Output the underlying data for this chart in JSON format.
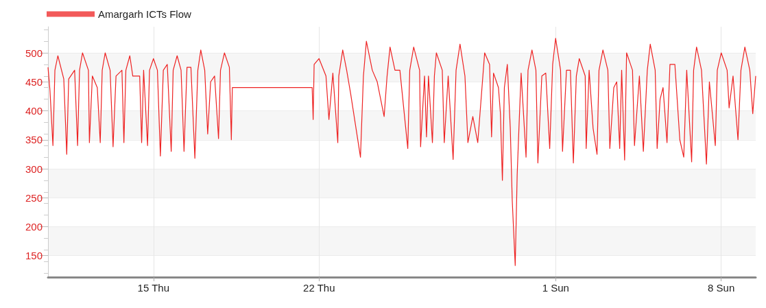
{
  "chart_data": {
    "type": "line",
    "legend": "top left",
    "grid": true,
    "marker": "none",
    "line_style": "solid",
    "xlim": [
      "--10-10T13:00",
      "--11-09T11:00"
    ],
    "xticks": [
      {
        "value": "--10-15",
        "label": "15 Thu"
      },
      {
        "value": "--10-22",
        "label": "22 Thu"
      },
      {
        "value": "--11-01",
        "label": "1 Sun"
      },
      {
        "value": "--11-08",
        "label": "8 Sun"
      }
    ],
    "ylim": [
      113,
      545
    ],
    "yticks": [
      150,
      200,
      250,
      300,
      350,
      400,
      450,
      500
    ],
    "series": [
      {
        "name": "Amargarh ICTs Flow",
        "color": "#ee2222",
        "x": [
          "--10-10T13:00",
          "--10-10T15:00",
          "--10-10T18:00",
          "--10-10T20:00",
          "--10-10T23:00",
          "--10-11T05:00",
          "--10-11T08:00",
          "--10-11T10:00",
          "--10-11T16:00",
          "--10-11T19:00",
          "--10-11T21:00",
          "--10-12T00:00",
          "--10-12T06:00",
          "--10-12T07:00",
          "--10-12T10:00",
          "--10-12T15:00",
          "--10-12T18:00",
          "--10-12T20:00",
          "--10-12T23:00",
          "--10-13T04:00",
          "--10-13T07:00",
          "--10-13T10:00",
          "--10-13T16:00",
          "--10-13T18:00",
          "--10-13T20:00",
          "--10-14T00:00",
          "--10-14T03:00",
          "--10-14T10:00",
          "--10-14T12:00",
          "--10-14T14:00",
          "--10-14T18:00",
          "--10-14T20:00",
          "--10-15T00:00",
          "--10-15T04:00",
          "--10-15T07:00",
          "--10-15T10:00",
          "--10-15T14:00",
          "--10-15T18:00",
          "--10-15T20:00",
          "--10-16T00:00",
          "--10-16T04:00",
          "--10-16T07:00",
          "--10-16T10:00",
          "--10-16T14:00",
          "--10-16T18:00",
          "--10-16T21:00",
          "--10-17T00:00",
          "--10-17T04:00",
          "--10-17T07:00",
          "--10-17T10:00",
          "--10-17T14:00",
          "--10-17T18:00",
          "--10-17T20:00",
          "--10-18T00:00",
          "--10-18T05:00",
          "--10-18T07:00",
          "--10-18T08:00",
          "--10-21T17:00",
          "--10-21T18:00",
          "--10-21T19:00",
          "--10-22T00:00",
          "--10-22T07:00",
          "--10-22T10:00",
          "--10-22T14:00",
          "--10-22T19:00",
          "--10-22T20:00",
          "--10-23T00:00",
          "--10-23T04:00",
          "--10-23T08:00",
          "--10-23T18:00",
          "--10-23T21:00",
          "--10-24T00:00",
          "--10-24T06:00",
          "--10-24T11:00",
          "--10-24T18:00",
          "--10-24T21:00",
          "--10-25T00:00",
          "--10-25T05:00",
          "--10-25T10:00",
          "--10-25T18:00",
          "--10-25T20:00",
          "--10-26T00:00",
          "--10-26T06:00",
          "--10-26T07:00",
          "--10-26T11:00",
          "--10-26T13:00",
          "--10-26T15:00",
          "--10-26T19:00",
          "--10-26T21:00",
          "--10-26T23:00",
          "--10-27T05:00",
          "--10-27T07:00",
          "--10-27T11:00",
          "--10-27T16:00",
          "--10-27T19:00",
          "--10-27T23:00",
          "--10-28T04:00",
          "--10-28T07:00",
          "--10-28T12:00",
          "--10-28T17:00",
          "--10-29T00:00",
          "--10-29T05:00",
          "--10-29T07:00",
          "--10-29T09:00",
          "--10-29T14:00",
          "--10-29T16:00",
          "--10-29T18:00",
          "--10-29T20:00",
          "--10-29T23:00",
          "--10-30T02:00",
          "--10-30T04:00",
          "--10-30T07:00",
          "--10-30T09:00",
          "--10-30T11:00",
          "--10-30T13:00",
          "--10-30T18:00",
          "--10-30T20:00",
          "--10-31T00:00",
          "--10-31T04:00",
          "--10-31T06:00",
          "--10-31T10:00",
          "--10-31T14:00",
          "--10-31T18:00",
          "--10-31T21:00",
          "--11-01T00:00",
          "--11-01T05:00",
          "--11-01T07:00",
          "--11-01T11:00",
          "--11-01T15:00",
          "--11-01T18:00",
          "--11-01T21:00",
          "--11-02T00:00",
          "--11-02T06:00",
          "--11-02T07:00",
          "--11-02T10:00",
          "--11-02T14:00",
          "--11-02T18:00",
          "--11-02T20:00",
          "--11-03T00:00",
          "--11-03T05:00",
          "--11-03T07:00",
          "--11-03T11:00",
          "--11-03T14:00",
          "--11-03T17:00",
          "--11-03T19:00",
          "--11-03T22:00",
          "--11-04T00:00",
          "--11-04T06:00",
          "--11-04T08:00",
          "--11-04T13:00",
          "--11-04T17:00",
          "--11-04T21:00",
          "--11-05T00:00",
          "--11-05T05:00",
          "--11-05T07:00",
          "--11-05T10:00",
          "--11-05T13:00",
          "--11-05T17:00",
          "--11-05T20:00",
          "--11-06T01:00",
          "--11-06T06:00",
          "--11-06T10:00",
          "--11-06T13:00",
          "--11-06T18:00",
          "--11-06T20:00",
          "--11-06T23:00",
          "--11-07T04:00",
          "--11-07T09:00",
          "--11-07T12:00",
          "--11-07T18:00",
          "--11-07T20:00",
          "--11-08T00:00",
          "--11-08T06:00",
          "--11-08T08:00",
          "--11-08T12:00",
          "--11-08T17:00",
          "--11-08T20:00",
          "--11-09T00:00",
          "--11-09T05:00",
          "--11-09T08:00",
          "--11-09T11:00"
        ],
        "values": [
          475,
          435,
          340,
          470,
          495,
          455,
          325,
          455,
          470,
          340,
          470,
          500,
          470,
          345,
          460,
          440,
          345,
          470,
          500,
          470,
          338,
          460,
          470,
          345,
          470,
          495,
          460,
          460,
          345,
          470,
          340,
          470,
          490,
          470,
          322,
          470,
          480,
          330,
          470,
          495,
          470,
          330,
          475,
          475,
          318,
          470,
          505,
          470,
          360,
          450,
          460,
          352,
          470,
          500,
          475,
          350,
          440,
          440,
          385,
          480,
          490,
          460,
          385,
          465,
          345,
          460,
          505,
          470,
          430,
          320,
          460,
          520,
          470,
          450,
          390,
          460,
          510,
          470,
          470,
          335,
          470,
          510,
          470,
          338,
          460,
          355,
          460,
          345,
          460,
          500,
          470,
          345,
          460,
          316,
          470,
          515,
          460,
          345,
          390,
          345,
          500,
          480,
          355,
          465,
          440,
          395,
          280,
          440,
          480,
          370,
          245,
          133,
          290,
          380,
          465,
          320,
          470,
          505,
          470,
          310,
          460,
          465,
          335,
          480,
          525,
          470,
          330,
          470,
          470,
          310,
          460,
          490,
          460,
          335,
          470,
          370,
          325,
          470,
          505,
          470,
          335,
          440,
          450,
          335,
          470,
          315,
          500,
          470,
          340,
          460,
          330,
          470,
          515,
          470,
          335,
          420,
          440,
          345,
          480,
          480,
          350,
          320,
          470,
          312,
          470,
          510,
          470,
          308,
          450,
          340,
          470,
          500,
          470,
          405,
          460,
          350,
          470,
          510,
          470,
          395,
          460
        ]
      }
    ]
  }
}
